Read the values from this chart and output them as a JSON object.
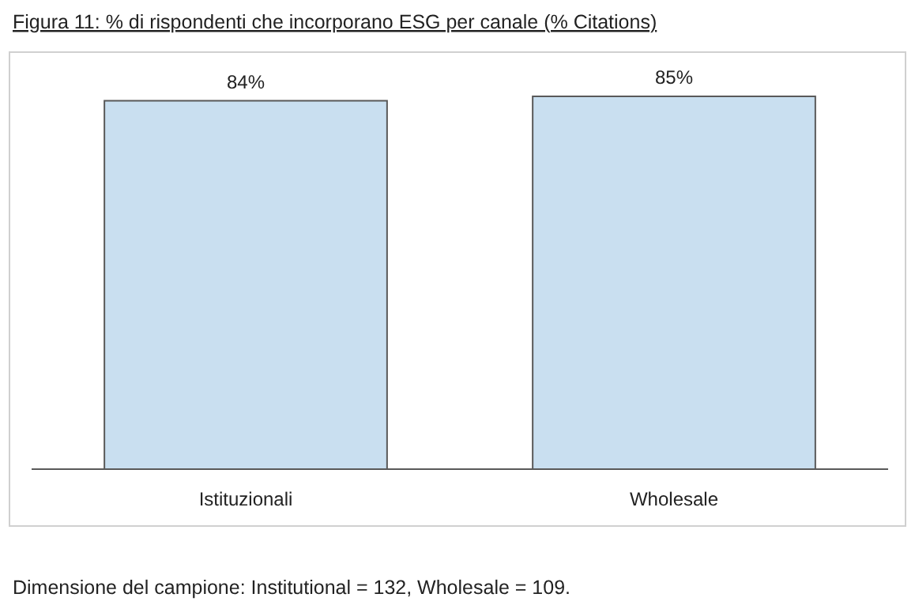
{
  "chart_data": {
    "type": "bar",
    "title": "Figura 11: % di rispondenti che incorporano ESG per canale (% Citations)",
    "categories": [
      "Istituzionali",
      "Wholesale"
    ],
    "values": [
      84,
      85
    ],
    "value_labels": [
      "84%",
      "85%"
    ],
    "color": "#c9dff0",
    "annotations": [
      "Dimensione del campione: Institutional = 132, Wholesale = 109."
    ]
  }
}
